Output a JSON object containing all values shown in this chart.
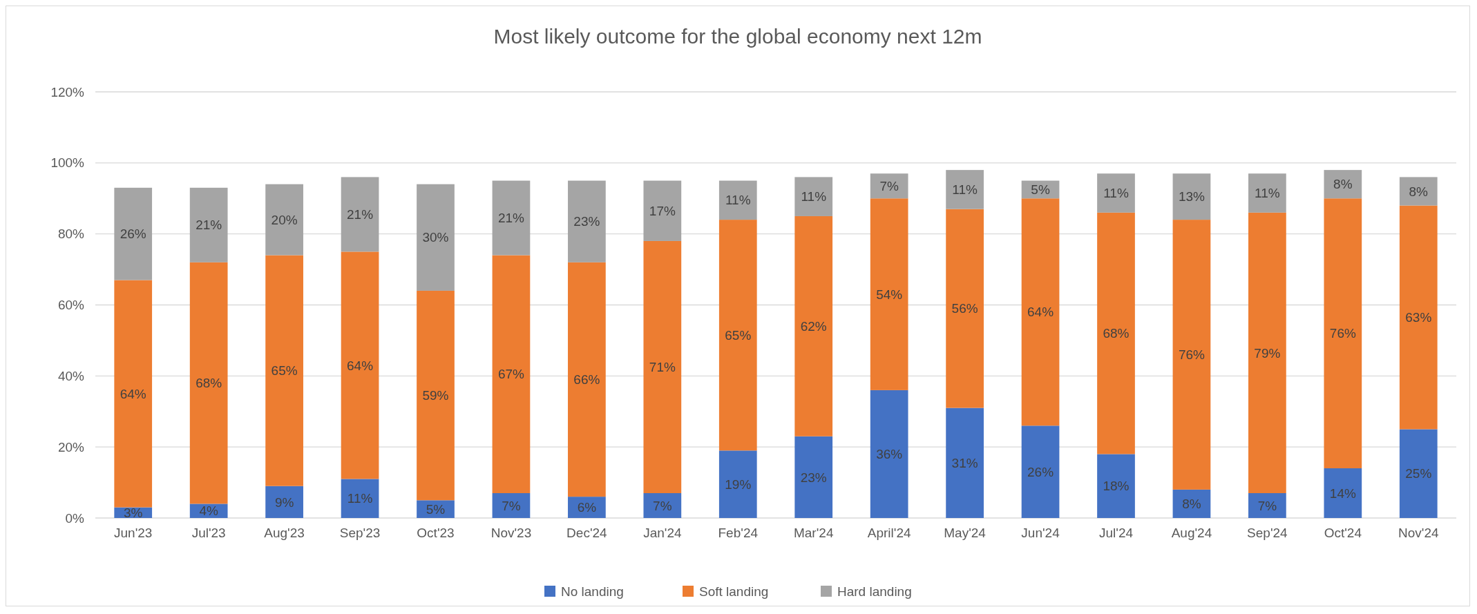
{
  "chart_data": {
    "type": "bar",
    "stacked": true,
    "title": "Most likely outcome for the global economy next 12m",
    "categories": [
      "Jun'23",
      "Jul'23",
      "Aug'23",
      "Sep'23",
      "Oct'23",
      "Nov'23",
      "Dec'24",
      "Jan'24",
      "Feb'24",
      "Mar'24",
      "April'24",
      "May'24",
      "Jun'24",
      "Jul'24",
      "Aug'24",
      "Sep'24",
      "Oct'24",
      "Nov'24"
    ],
    "series": [
      {
        "name": "No landing",
        "color": "#4472c4",
        "values": [
          3,
          4,
          9,
          11,
          5,
          7,
          6,
          7,
          19,
          23,
          36,
          31,
          26,
          18,
          8,
          7,
          14,
          25
        ],
        "value_labels": [
          "3%",
          "4%",
          "9%",
          "11%",
          "5%",
          "7%",
          "6%",
          "7%",
          "19%",
          "23%",
          "36%",
          "31%",
          "26%",
          "18%",
          "8%",
          "7%",
          "14%",
          "25%"
        ]
      },
      {
        "name": "Soft landing",
        "color": "#ed7d31",
        "values": [
          64,
          68,
          65,
          64,
          59,
          67,
          66,
          71,
          65,
          62,
          54,
          56,
          64,
          68,
          76,
          79,
          76,
          63
        ],
        "value_labels": [
          "64%",
          "68%",
          "65%",
          "64%",
          "59%",
          "67%",
          "66%",
          "71%",
          "65%",
          "62%",
          "54%",
          "56%",
          "64%",
          "68%",
          "76%",
          "79%",
          "76%",
          "63%"
        ]
      },
      {
        "name": "Hard landing",
        "color": "#a5a5a5",
        "values": [
          26,
          21,
          20,
          21,
          30,
          21,
          23,
          17,
          11,
          11,
          7,
          11,
          5,
          11,
          13,
          11,
          8,
          8
        ],
        "value_labels": [
          "26%",
          "21%",
          "20%",
          "21%",
          "30%",
          "21%",
          "23%",
          "17%",
          "11%",
          "11%",
          "7%",
          "11%",
          "5%",
          "11%",
          "13%",
          "11%",
          "8%",
          "8%"
        ]
      }
    ],
    "ylim": [
      0,
      120
    ],
    "yticks": [
      {
        "value": 0,
        "label": "0%"
      },
      {
        "value": 20,
        "label": "20%"
      },
      {
        "value": 40,
        "label": "40%"
      },
      {
        "value": 60,
        "label": "60%"
      },
      {
        "value": 80,
        "label": "80%"
      },
      {
        "value": 100,
        "label": "100%"
      },
      {
        "value": 120,
        "label": "120%"
      }
    ],
    "grid": "y",
    "legend": "bottom"
  }
}
